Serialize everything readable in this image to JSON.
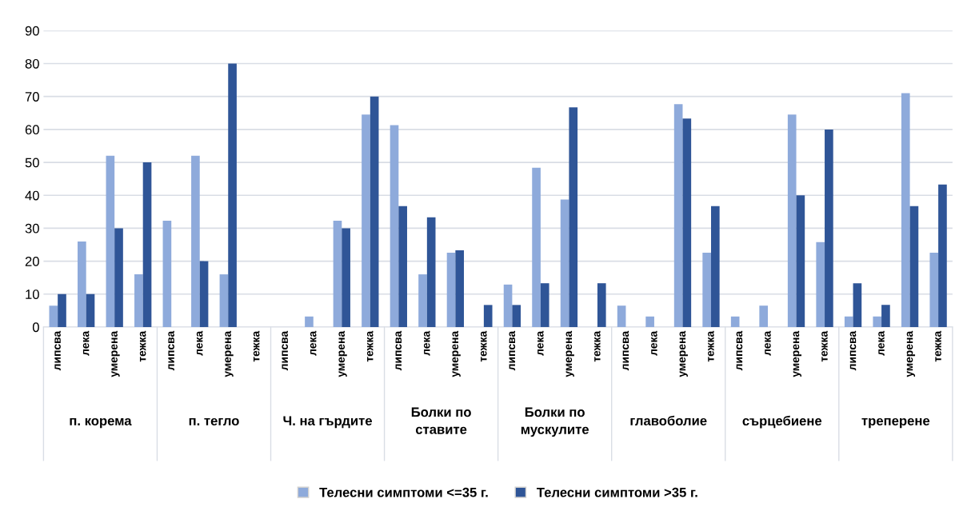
{
  "chart_data": {
    "type": "bar",
    "categories": [
      "липсва",
      "лека",
      "умерена",
      "тежка",
      "липсва",
      "лека",
      "умерена",
      "тежка",
      "липсва",
      "лека",
      "умерена",
      "тежка",
      "липсва",
      "лека",
      "умерена",
      "тежка",
      "липсва",
      "лека",
      "умерена",
      "тежка",
      "липсва",
      "лека",
      "умерена",
      "тежка",
      "липсва",
      "лека",
      "умерена",
      "тежка",
      "липсва",
      "лека",
      "умерена",
      "тежка"
    ],
    "annotations": [
      "п. корема",
      "п. тегло",
      "Ч. на гърдите",
      "Болки по ставите",
      "Болки по мускулите",
      "главоболие",
      "сърцебиене",
      "треперене"
    ],
    "series": [
      {
        "name": "Телесни симптоми <=35 г.",
        "color": "#8eaadb",
        "values": [
          6.5,
          26,
          52,
          16,
          32.3,
          52,
          16,
          0,
          0,
          3.2,
          32.3,
          64.5,
          61.3,
          16,
          22.6,
          0,
          12.9,
          48.4,
          38.7,
          0,
          6.5,
          3.2,
          67.7,
          22.6,
          3.2,
          6.5,
          64.5,
          25.8,
          3.2,
          3.2,
          71,
          22.6
        ]
      },
      {
        "name": "Телесни симптоми >35 г.",
        "color": "#2f5597",
        "values": [
          10,
          10,
          30,
          50,
          0,
          20,
          80,
          0,
          0,
          0,
          30,
          70,
          36.7,
          33.3,
          23.3,
          6.7,
          6.7,
          13.3,
          66.7,
          13.3,
          0,
          0,
          63.3,
          36.7,
          0,
          0,
          40,
          60,
          13.3,
          6.7,
          36.7,
          43.3
        ]
      }
    ],
    "ylim": [
      0,
      90
    ],
    "yticks": [
      0,
      10,
      20,
      30,
      40,
      50,
      60,
      70,
      80,
      90
    ],
    "grid": "y",
    "legend": "bottom"
  }
}
